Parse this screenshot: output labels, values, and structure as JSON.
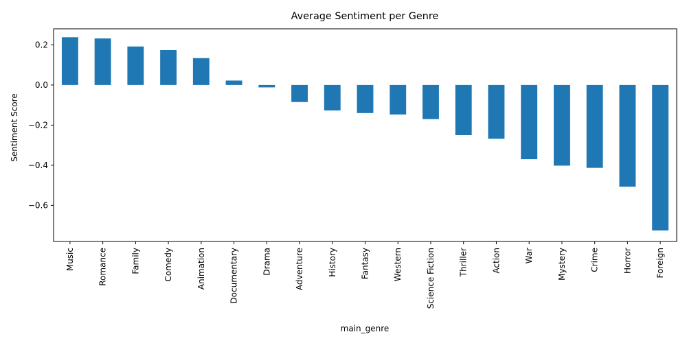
{
  "chart_data": {
    "type": "bar",
    "title": "Average Sentiment per Genre",
    "xlabel": "main_genre",
    "ylabel": "Sentiment Score",
    "categories": [
      "Music",
      "Romance",
      "Family",
      "Comedy",
      "Animation",
      "Documentary",
      "Drama",
      "Adventure",
      "History",
      "Fantasy",
      "Western",
      "Science Fiction",
      "Thriller",
      "Action",
      "War",
      "Mystery",
      "Crime",
      "Horror",
      "Foreign"
    ],
    "values": [
      0.238,
      0.232,
      0.192,
      0.174,
      0.134,
      0.022,
      -0.012,
      -0.085,
      -0.127,
      -0.14,
      -0.147,
      -0.17,
      -0.25,
      -0.268,
      -0.37,
      -0.402,
      -0.413,
      -0.507,
      -0.725
    ],
    "ylim": [
      -0.78,
      0.28
    ],
    "yticks": [
      0.2,
      0.0,
      -0.2,
      -0.4,
      -0.6
    ],
    "ytick_labels": [
      "0.2",
      "0.0",
      "−0.2",
      "−0.4",
      "−0.6"
    ],
    "grid": false,
    "bar_color": "#1f77b4"
  }
}
